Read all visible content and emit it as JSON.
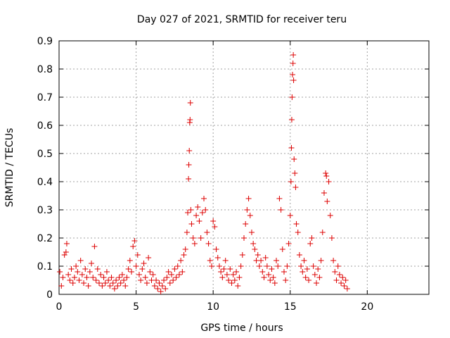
{
  "chart_data": {
    "type": "scatter",
    "title": "Day 027 of 2021, SRMTID for receiver teru",
    "xlabel": "GPS time / hours",
    "ylabel": "SRMTID / TECUs",
    "xlim": [
      0,
      24
    ],
    "ylim": [
      0,
      0.9
    ],
    "xticks": [
      0,
      5,
      10,
      15,
      20
    ],
    "xtick_labels": [
      "0",
      "5",
      "10",
      "15",
      "20"
    ],
    "yticks": [
      0,
      0.1,
      0.2,
      0.3,
      0.4,
      0.5,
      0.6,
      0.7,
      0.8,
      0.9
    ],
    "ytick_labels": [
      "0",
      "0.1",
      "0.2",
      "0.3",
      "0.4",
      "0.5",
      "0.6",
      "0.7",
      "0.8",
      "0.9"
    ],
    "grid": true,
    "marker": "+",
    "series": [
      {
        "color": "#dd0000",
        "points": [
          [
            0.05,
            0.08
          ],
          [
            0.15,
            0.03
          ],
          [
            0.25,
            0.06
          ],
          [
            0.35,
            0.14
          ],
          [
            0.45,
            0.15
          ],
          [
            0.5,
            0.18
          ],
          [
            0.6,
            0.07
          ],
          [
            0.7,
            0.05
          ],
          [
            0.8,
            0.09
          ],
          [
            0.9,
            0.04
          ],
          [
            1.0,
            0.06
          ],
          [
            1.1,
            0.1
          ],
          [
            1.2,
            0.08
          ],
          [
            1.3,
            0.05
          ],
          [
            1.4,
            0.12
          ],
          [
            1.5,
            0.07
          ],
          [
            1.6,
            0.04
          ],
          [
            1.7,
            0.09
          ],
          [
            1.8,
            0.06
          ],
          [
            1.9,
            0.03
          ],
          [
            2.0,
            0.08
          ],
          [
            2.1,
            0.11
          ],
          [
            2.2,
            0.06
          ],
          [
            2.3,
            0.17
          ],
          [
            2.4,
            0.05
          ],
          [
            2.5,
            0.09
          ],
          [
            2.6,
            0.04
          ],
          [
            2.7,
            0.07
          ],
          [
            2.8,
            0.03
          ],
          [
            2.9,
            0.06
          ],
          [
            3.0,
            0.04
          ],
          [
            3.1,
            0.08
          ],
          [
            3.2,
            0.05
          ],
          [
            3.3,
            0.03
          ],
          [
            3.4,
            0.06
          ],
          [
            3.5,
            0.04
          ],
          [
            3.6,
            0.02
          ],
          [
            3.7,
            0.05
          ],
          [
            3.8,
            0.03
          ],
          [
            3.9,
            0.06
          ],
          [
            4.0,
            0.04
          ],
          [
            4.1,
            0.07
          ],
          [
            4.2,
            0.05
          ],
          [
            4.3,
            0.03
          ],
          [
            4.4,
            0.06
          ],
          [
            4.5,
            0.09
          ],
          [
            4.6,
            0.12
          ],
          [
            4.7,
            0.08
          ],
          [
            4.8,
            0.17
          ],
          [
            4.9,
            0.19
          ],
          [
            5.0,
            0.1
          ],
          [
            5.1,
            0.14
          ],
          [
            5.2,
            0.07
          ],
          [
            5.3,
            0.05
          ],
          [
            5.4,
            0.09
          ],
          [
            5.5,
            0.11
          ],
          [
            5.6,
            0.06
          ],
          [
            5.7,
            0.04
          ],
          [
            5.8,
            0.13
          ],
          [
            5.9,
            0.08
          ],
          [
            6.0,
            0.05
          ],
          [
            6.1,
            0.07
          ],
          [
            6.2,
            0.03
          ],
          [
            6.3,
            0.05
          ],
          [
            6.4,
            0.02
          ],
          [
            6.5,
            0.04
          ],
          [
            6.6,
            0.01
          ],
          [
            6.7,
            0.03
          ],
          [
            6.8,
            0.05
          ],
          [
            6.9,
            0.02
          ],
          [
            7.0,
            0.06
          ],
          [
            7.1,
            0.08
          ],
          [
            7.2,
            0.04
          ],
          [
            7.3,
            0.07
          ],
          [
            7.4,
            0.05
          ],
          [
            7.5,
            0.09
          ],
          [
            7.6,
            0.06
          ],
          [
            7.7,
            0.1
          ],
          [
            7.8,
            0.07
          ],
          [
            7.9,
            0.12
          ],
          [
            8.0,
            0.08
          ],
          [
            8.1,
            0.14
          ],
          [
            8.2,
            0.16
          ],
          [
            8.3,
            0.22
          ],
          [
            8.35,
            0.29
          ],
          [
            8.4,
            0.41
          ],
          [
            8.42,
            0.46
          ],
          [
            8.45,
            0.51
          ],
          [
            8.48,
            0.61
          ],
          [
            8.5,
            0.62
          ],
          [
            8.52,
            0.68
          ],
          [
            8.55,
            0.3
          ],
          [
            8.6,
            0.25
          ],
          [
            8.7,
            0.2
          ],
          [
            8.8,
            0.18
          ],
          [
            8.9,
            0.28
          ],
          [
            9.0,
            0.31
          ],
          [
            9.1,
            0.26
          ],
          [
            9.2,
            0.2
          ],
          [
            9.3,
            0.29
          ],
          [
            9.4,
            0.34
          ],
          [
            9.5,
            0.3
          ],
          [
            9.6,
            0.22
          ],
          [
            9.7,
            0.18
          ],
          [
            9.8,
            0.12
          ],
          [
            9.9,
            0.1
          ],
          [
            10.0,
            0.26
          ],
          [
            10.1,
            0.24
          ],
          [
            10.2,
            0.16
          ],
          [
            10.3,
            0.13
          ],
          [
            10.4,
            0.1
          ],
          [
            10.5,
            0.08
          ],
          [
            10.6,
            0.06
          ],
          [
            10.7,
            0.09
          ],
          [
            10.8,
            0.12
          ],
          [
            10.9,
            0.07
          ],
          [
            11.0,
            0.05
          ],
          [
            11.1,
            0.09
          ],
          [
            11.2,
            0.04
          ],
          [
            11.3,
            0.07
          ],
          [
            11.4,
            0.05
          ],
          [
            11.5,
            0.08
          ],
          [
            11.6,
            0.03
          ],
          [
            11.7,
            0.06
          ],
          [
            11.8,
            0.1
          ],
          [
            11.9,
            0.14
          ],
          [
            12.0,
            0.2
          ],
          [
            12.1,
            0.25
          ],
          [
            12.2,
            0.3
          ],
          [
            12.3,
            0.34
          ],
          [
            12.4,
            0.28
          ],
          [
            12.5,
            0.22
          ],
          [
            12.6,
            0.18
          ],
          [
            12.7,
            0.16
          ],
          [
            12.8,
            0.12
          ],
          [
            12.9,
            0.14
          ],
          [
            13.0,
            0.1
          ],
          [
            13.1,
            0.12
          ],
          [
            13.2,
            0.08
          ],
          [
            13.3,
            0.06
          ],
          [
            13.4,
            0.13
          ],
          [
            13.5,
            0.1
          ],
          [
            13.6,
            0.07
          ],
          [
            13.7,
            0.05
          ],
          [
            13.8,
            0.09
          ],
          [
            13.9,
            0.06
          ],
          [
            14.0,
            0.04
          ],
          [
            14.1,
            0.12
          ],
          [
            14.2,
            0.1
          ],
          [
            14.3,
            0.34
          ],
          [
            14.4,
            0.3
          ],
          [
            14.5,
            0.16
          ],
          [
            14.6,
            0.08
          ],
          [
            14.7,
            0.05
          ],
          [
            14.8,
            0.1
          ],
          [
            14.9,
            0.18
          ],
          [
            15.0,
            0.28
          ],
          [
            15.05,
            0.4
          ],
          [
            15.08,
            0.52
          ],
          [
            15.1,
            0.62
          ],
          [
            15.12,
            0.7
          ],
          [
            15.15,
            0.78
          ],
          [
            15.18,
            0.82
          ],
          [
            15.2,
            0.85
          ],
          [
            15.22,
            0.76
          ],
          [
            15.25,
            0.48
          ],
          [
            15.3,
            0.43
          ],
          [
            15.35,
            0.38
          ],
          [
            15.4,
            0.25
          ],
          [
            15.5,
            0.22
          ],
          [
            15.6,
            0.14
          ],
          [
            15.7,
            0.1
          ],
          [
            15.8,
            0.08
          ],
          [
            15.9,
            0.12
          ],
          [
            16.0,
            0.06
          ],
          [
            16.1,
            0.09
          ],
          [
            16.2,
            0.05
          ],
          [
            16.3,
            0.18
          ],
          [
            16.4,
            0.2
          ],
          [
            16.5,
            0.1
          ],
          [
            16.6,
            0.07
          ],
          [
            16.7,
            0.04
          ],
          [
            16.8,
            0.09
          ],
          [
            16.9,
            0.06
          ],
          [
            17.0,
            0.12
          ],
          [
            17.1,
            0.22
          ],
          [
            17.2,
            0.36
          ],
          [
            17.3,
            0.43
          ],
          [
            17.35,
            0.42
          ],
          [
            17.4,
            0.33
          ],
          [
            17.5,
            0.4
          ],
          [
            17.6,
            0.28
          ],
          [
            17.7,
            0.2
          ],
          [
            17.8,
            0.12
          ],
          [
            17.9,
            0.08
          ],
          [
            18.0,
            0.05
          ],
          [
            18.1,
            0.1
          ],
          [
            18.2,
            0.07
          ],
          [
            18.3,
            0.04
          ],
          [
            18.4,
            0.06
          ],
          [
            18.5,
            0.03
          ],
          [
            18.6,
            0.05
          ],
          [
            18.7,
            0.02
          ]
        ]
      }
    ]
  }
}
